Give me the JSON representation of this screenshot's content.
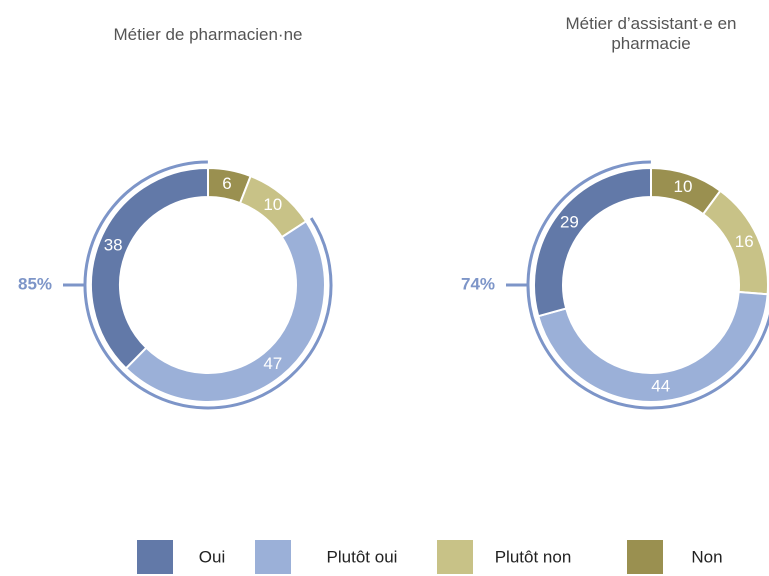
{
  "chart_data": [
    {
      "type": "donut",
      "title": "Métier de pharmacien·ne",
      "categories": [
        "Oui",
        "Plutôt oui",
        "Plutôt non",
        "Non"
      ],
      "values": [
        38,
        47,
        10,
        6
      ],
      "colors": [
        "#6279a8",
        "#9bb0d8",
        "#c8c287",
        "#9a9050"
      ],
      "annotation": {
        "value": 85,
        "label": "85%"
      }
    },
    {
      "type": "donut",
      "title": "Métier d’assistant·e en pharmacie",
      "categories": [
        "Oui",
        "Plutôt oui",
        "Plutôt non",
        "Non"
      ],
      "values": [
        29,
        44,
        16,
        10
      ],
      "colors": [
        "#6279a8",
        "#9bb0d8",
        "#c8c287",
        "#9a9050"
      ],
      "annotation": {
        "value": 74,
        "label": "74%"
      }
    }
  ]
}
